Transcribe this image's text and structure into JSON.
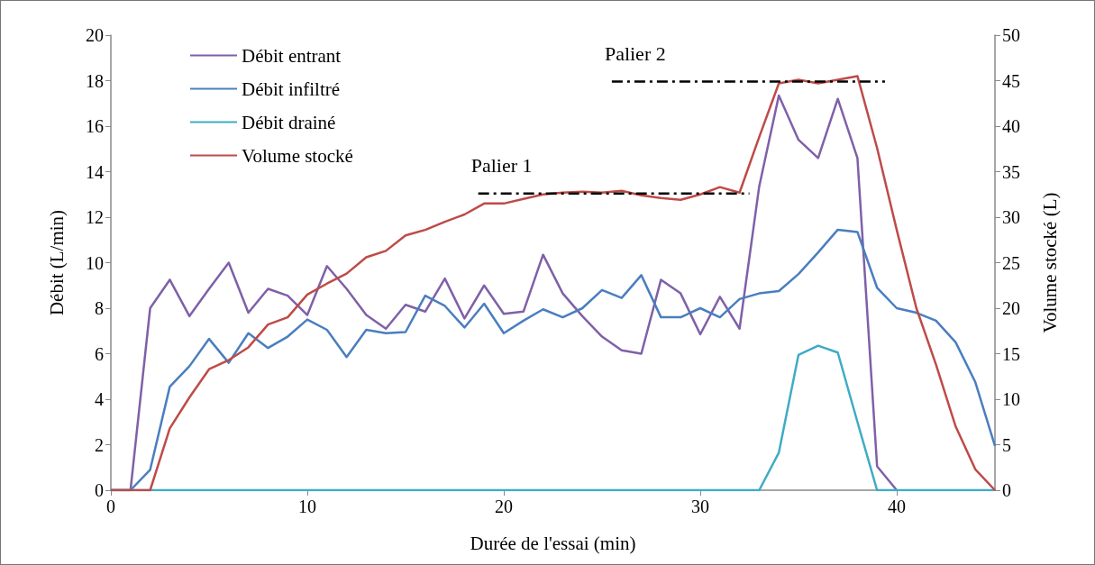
{
  "chart_data": {
    "type": "line",
    "xlabel": "Durée de l'essai (min)",
    "ylabel": "Débit (L/min)",
    "y2label": "Volume stocké (L)",
    "x": [
      0,
      1,
      2,
      3,
      4,
      5,
      6,
      7,
      8,
      9,
      10,
      11,
      12,
      13,
      14,
      15,
      16,
      17,
      18,
      19,
      20,
      21,
      22,
      23,
      24,
      25,
      26,
      27,
      28,
      29,
      30,
      31,
      32,
      33,
      34,
      35,
      36,
      37,
      38,
      39,
      40,
      41,
      42,
      43,
      44,
      45
    ],
    "xlim": [
      0,
      45
    ],
    "xticks": [
      0,
      10,
      20,
      30,
      40
    ],
    "ylim": [
      0,
      20
    ],
    "yticks": [
      0,
      2,
      4,
      6,
      8,
      10,
      12,
      14,
      16,
      18,
      20
    ],
    "y2lim": [
      0,
      50
    ],
    "y2ticks": [
      0,
      5,
      10,
      15,
      20,
      25,
      30,
      35,
      40,
      45,
      50
    ],
    "grid": false,
    "legend": "top left",
    "marker": "none",
    "series": [
      {
        "name": "Débit entrant",
        "color": "#7f60a8",
        "values": [
          0,
          0,
          8.0,
          9.25,
          7.65,
          8.85,
          10.0,
          7.8,
          8.85,
          8.55,
          7.7,
          9.85,
          8.85,
          7.7,
          7.1,
          8.15,
          7.85,
          9.3,
          7.55,
          9.0,
          7.75,
          7.85,
          10.35,
          8.65,
          7.65,
          6.75,
          6.15,
          6.0,
          9.25,
          8.65,
          6.85,
          8.5,
          7.1,
          13.35,
          17.35,
          15.4,
          14.6,
          17.2,
          14.6,
          1.05,
          0,
          null,
          null,
          null,
          null,
          null
        ]
      },
      {
        "name": "Débit infiltré",
        "color": "#4a7ebf",
        "values": [
          0,
          0,
          0.9,
          4.55,
          5.45,
          6.65,
          5.6,
          6.9,
          6.25,
          6.75,
          7.5,
          7.05,
          5.85,
          7.05,
          6.9,
          6.95,
          8.55,
          8.1,
          7.15,
          8.2,
          6.9,
          7.45,
          7.95,
          7.6,
          8.0,
          8.8,
          8.45,
          9.45,
          7.6,
          7.6,
          8.0,
          7.6,
          8.4,
          8.65,
          8.75,
          9.5,
          10.45,
          11.45,
          11.35,
          8.9,
          8.0,
          7.8,
          7.45,
          6.5,
          4.75,
          1.95
        ]
      },
      {
        "name": "Débit drainé",
        "color": "#3fabc6",
        "values": [
          0,
          0,
          0,
          0,
          0,
          0,
          0,
          0,
          0,
          0,
          0,
          0,
          0,
          0,
          0,
          0,
          0,
          0,
          0,
          0,
          0,
          0,
          0,
          0,
          0,
          0,
          0,
          0,
          0,
          0,
          0,
          0,
          0,
          0,
          1.65,
          5.95,
          6.35,
          6.05,
          3.0,
          0,
          0,
          0,
          0,
          0,
          0,
          0
        ]
      },
      {
        "name": "Volume stocké",
        "color": "#be4b48",
        "axis": "y2",
        "values": [
          0,
          0,
          0,
          6.8,
          10.2,
          13.3,
          14.3,
          15.7,
          18.2,
          19.0,
          21.5,
          22.7,
          23.8,
          25.6,
          26.3,
          28.0,
          28.6,
          29.5,
          30.3,
          31.5,
          31.5,
          32.0,
          32.5,
          32.7,
          32.8,
          32.7,
          32.9,
          32.4,
          32.1,
          31.9,
          32.5,
          33.3,
          32.7,
          38.8,
          44.7,
          45.1,
          44.7,
          45.1,
          45.5,
          37.6,
          28.6,
          20.0,
          13.8,
          7.0,
          2.3,
          0
        ]
      },
      {
        "name": "Palier 1",
        "color": "#000000",
        "axis": "y2",
        "line_style": "dashed",
        "x": [
          18.7,
          32.5
        ],
        "values": [
          32.6,
          32.6
        ]
      },
      {
        "name": "Palier 2",
        "color": "#000000",
        "axis": "y2",
        "line_style": "dashed",
        "x": [
          25.5,
          39.4
        ],
        "values": [
          44.9,
          44.9
        ]
      }
    ]
  }
}
